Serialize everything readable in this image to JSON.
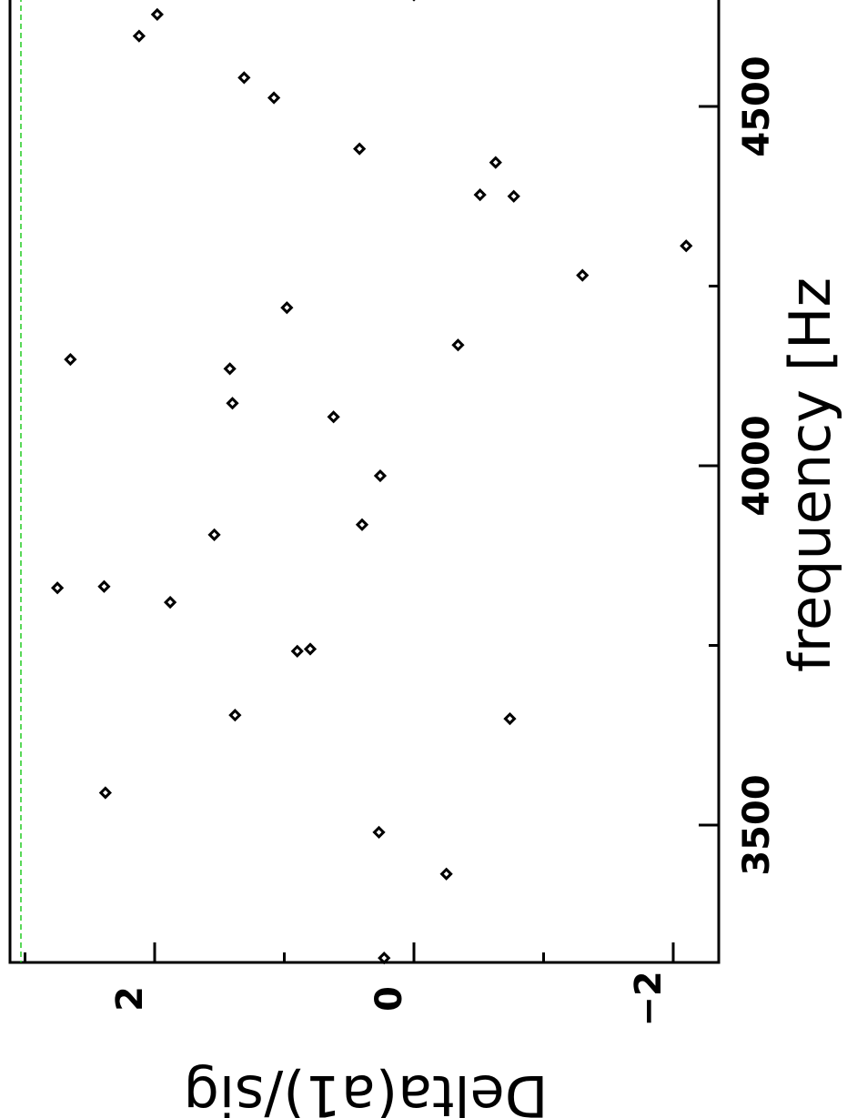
{
  "chart_data": {
    "type": "scatter",
    "orientation": "rotated-90-clockwise",
    "xlabel": "frequency [Hz",
    "ylabel": "Delta(a1)/sig",
    "xlim": [
      3165,
      4690
    ],
    "ylim": [
      -2.5,
      3.1
    ],
    "x_ticks": [
      3500,
      4000,
      4500
    ],
    "x_minor_ticks": [
      3750,
      4250
    ],
    "y_ticks": [
      2,
      0,
      -2
    ],
    "y_minor_ticks": [
      3,
      1,
      -1
    ],
    "x_tick_labels": [
      "3500",
      "4000",
      "4500"
    ],
    "y_tick_labels": [
      "2",
      "0",
      "−2"
    ],
    "reference_line": {
      "y": 3.0,
      "color": "#22cc22",
      "style": "dashed"
    },
    "grid": false,
    "legend": null,
    "x": [
      3315,
      3432,
      3490,
      3545,
      3648,
      3745,
      3653,
      3742,
      3832,
      3810,
      3830,
      3904,
      3918,
      3986,
      4068,
      4087,
      4135,
      4148,
      4168,
      4220,
      4265,
      4306,
      4377,
      4375,
      4422,
      4441,
      4512,
      4540,
      4598,
      4628,
      4655
    ],
    "y": [
      0.23,
      -0.25,
      0.27,
      2.38,
      -0.74,
      0.8,
      1.38,
      0.9,
      2.39,
      1.88,
      2.75,
      1.54,
      0.4,
      0.26,
      0.62,
      1.4,
      1.42,
      2.65,
      -0.34,
      0.98,
      -1.3,
      -2.1,
      -0.51,
      -0.77,
      -0.63,
      0.42,
      1.08,
      1.31,
      2.12,
      1.98,
      0.0
    ]
  }
}
